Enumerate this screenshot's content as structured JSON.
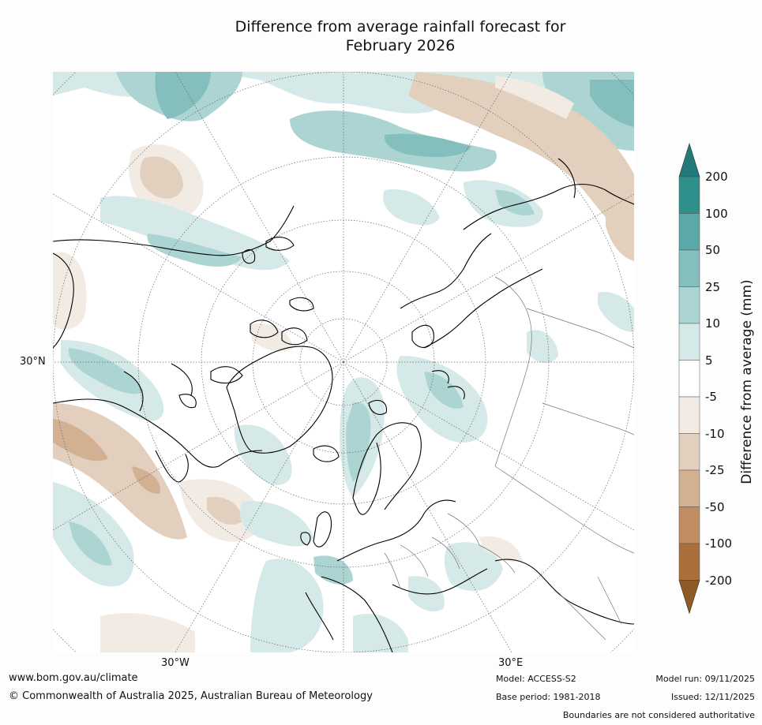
{
  "title": {
    "line1": "Difference from average rainfall forecast for",
    "line2": "February 2026"
  },
  "map": {
    "projection": "north-polar-stereographic",
    "graticule_labels": {
      "lat_30n": "30°N",
      "lon_30w": "30°W",
      "lon_30e": "30°E"
    }
  },
  "colorbar": {
    "title": "Difference from average (mm)",
    "ticks": [
      "200",
      "100",
      "50",
      "25",
      "10",
      "5",
      "-5",
      "-10",
      "-25",
      "-50",
      "-100",
      "-200"
    ],
    "band_colors": [
      "#2e8f8b",
      "#5aa9a8",
      "#84bfbd",
      "#acd4d2",
      "#d5e9e8",
      "#ffffff",
      "#f1ebe4",
      "#e3cfbd",
      "#d2b092",
      "#c08d62",
      "#ab6f3b"
    ],
    "over_color": "#247a7a",
    "under_color": "#8f5a26"
  },
  "footer": {
    "website": "www.bom.gov.au/climate",
    "copyright": "© Commonwealth of Australia 2025, Australian Bureau of Meteorology",
    "model": "Model: ACCESS-S2",
    "base_period": "Base period: 1981-2018",
    "model_run": "Model run: 09/11/2025",
    "issued": "Issued: 12/11/2025",
    "disclaimer": "Boundaries are not considered authoritative"
  }
}
